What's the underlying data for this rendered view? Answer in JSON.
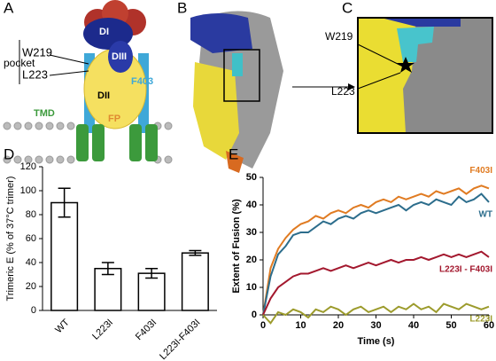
{
  "panel_labels": [
    "A",
    "B",
    "C",
    "D",
    "E"
  ],
  "diagram_a": {
    "domain_1": "DI",
    "domain_3": "DIII",
    "domain_2": "DII",
    "residue_1": "W219",
    "residue_2": "L223",
    "pocket": "pocket",
    "residue_3": "F403",
    "tmd": "TMD",
    "fp": "FP"
  },
  "diagram_c": {
    "residue_1": "W219",
    "residue_2": "L223"
  },
  "chart_data": [
    {
      "type": "bar",
      "ylabel": "Trimeric E (% of 37°C trimer)",
      "categories": [
        "WT",
        "L223I",
        "F403I",
        "L223I-F403I"
      ],
      "values": [
        90,
        35,
        31,
        48
      ],
      "errors": [
        12,
        5,
        4,
        2
      ],
      "color": "#ffffff",
      "edge_color": "#000000",
      "ylim": [
        0,
        120
      ],
      "yticks": [
        0,
        20,
        40,
        60,
        80,
        100,
        120
      ]
    },
    {
      "type": "line",
      "xlabel": "Time (s)",
      "ylabel": "Extent of Fusion (%)",
      "x": [
        0,
        2,
        4,
        6,
        8,
        10,
        12,
        14,
        16,
        18,
        20,
        22,
        24,
        26,
        28,
        30,
        32,
        34,
        36,
        38,
        40,
        42,
        44,
        46,
        48,
        50,
        52,
        54,
        56,
        58,
        60
      ],
      "series": [
        {
          "name": "F403I",
          "color": "#e07b22",
          "values": [
            0,
            17,
            24,
            28,
            31,
            33,
            34,
            36,
            35,
            37,
            38,
            37,
            39,
            40,
            39,
            41,
            42,
            41,
            43,
            42,
            43,
            44,
            43,
            45,
            44,
            45,
            46,
            44,
            46,
            47,
            46
          ]
        },
        {
          "name": "WT",
          "color": "#2c6d8c",
          "values": [
            0,
            14,
            22,
            25,
            29,
            30,
            30,
            32,
            34,
            33,
            35,
            36,
            35,
            37,
            38,
            37,
            38,
            39,
            40,
            38,
            40,
            41,
            40,
            42,
            41,
            40,
            43,
            41,
            42,
            44,
            41
          ]
        },
        {
          "name": "L223I - F403I",
          "color": "#a3182e",
          "values": [
            0,
            6,
            10,
            12,
            14,
            15,
            15,
            16,
            17,
            16,
            17,
            18,
            17,
            18,
            19,
            18,
            19,
            20,
            19,
            20,
            20,
            21,
            20,
            21,
            22,
            21,
            22,
            21,
            22,
            23,
            21
          ]
        },
        {
          "name": "L223I",
          "color": "#9c9b2c",
          "values": [
            0,
            -3,
            1,
            0,
            2,
            1,
            -1,
            2,
            1,
            3,
            2,
            0,
            2,
            3,
            1,
            2,
            3,
            1,
            3,
            2,
            4,
            2,
            3,
            1,
            4,
            3,
            2,
            4,
            3,
            2,
            3
          ]
        }
      ],
      "xlim": [
        0,
        60
      ],
      "xticks": [
        0,
        10,
        20,
        30,
        40,
        50,
        60
      ],
      "ylim": [
        0,
        50
      ],
      "yticks": [
        0,
        10,
        20,
        30,
        40,
        50
      ]
    }
  ]
}
